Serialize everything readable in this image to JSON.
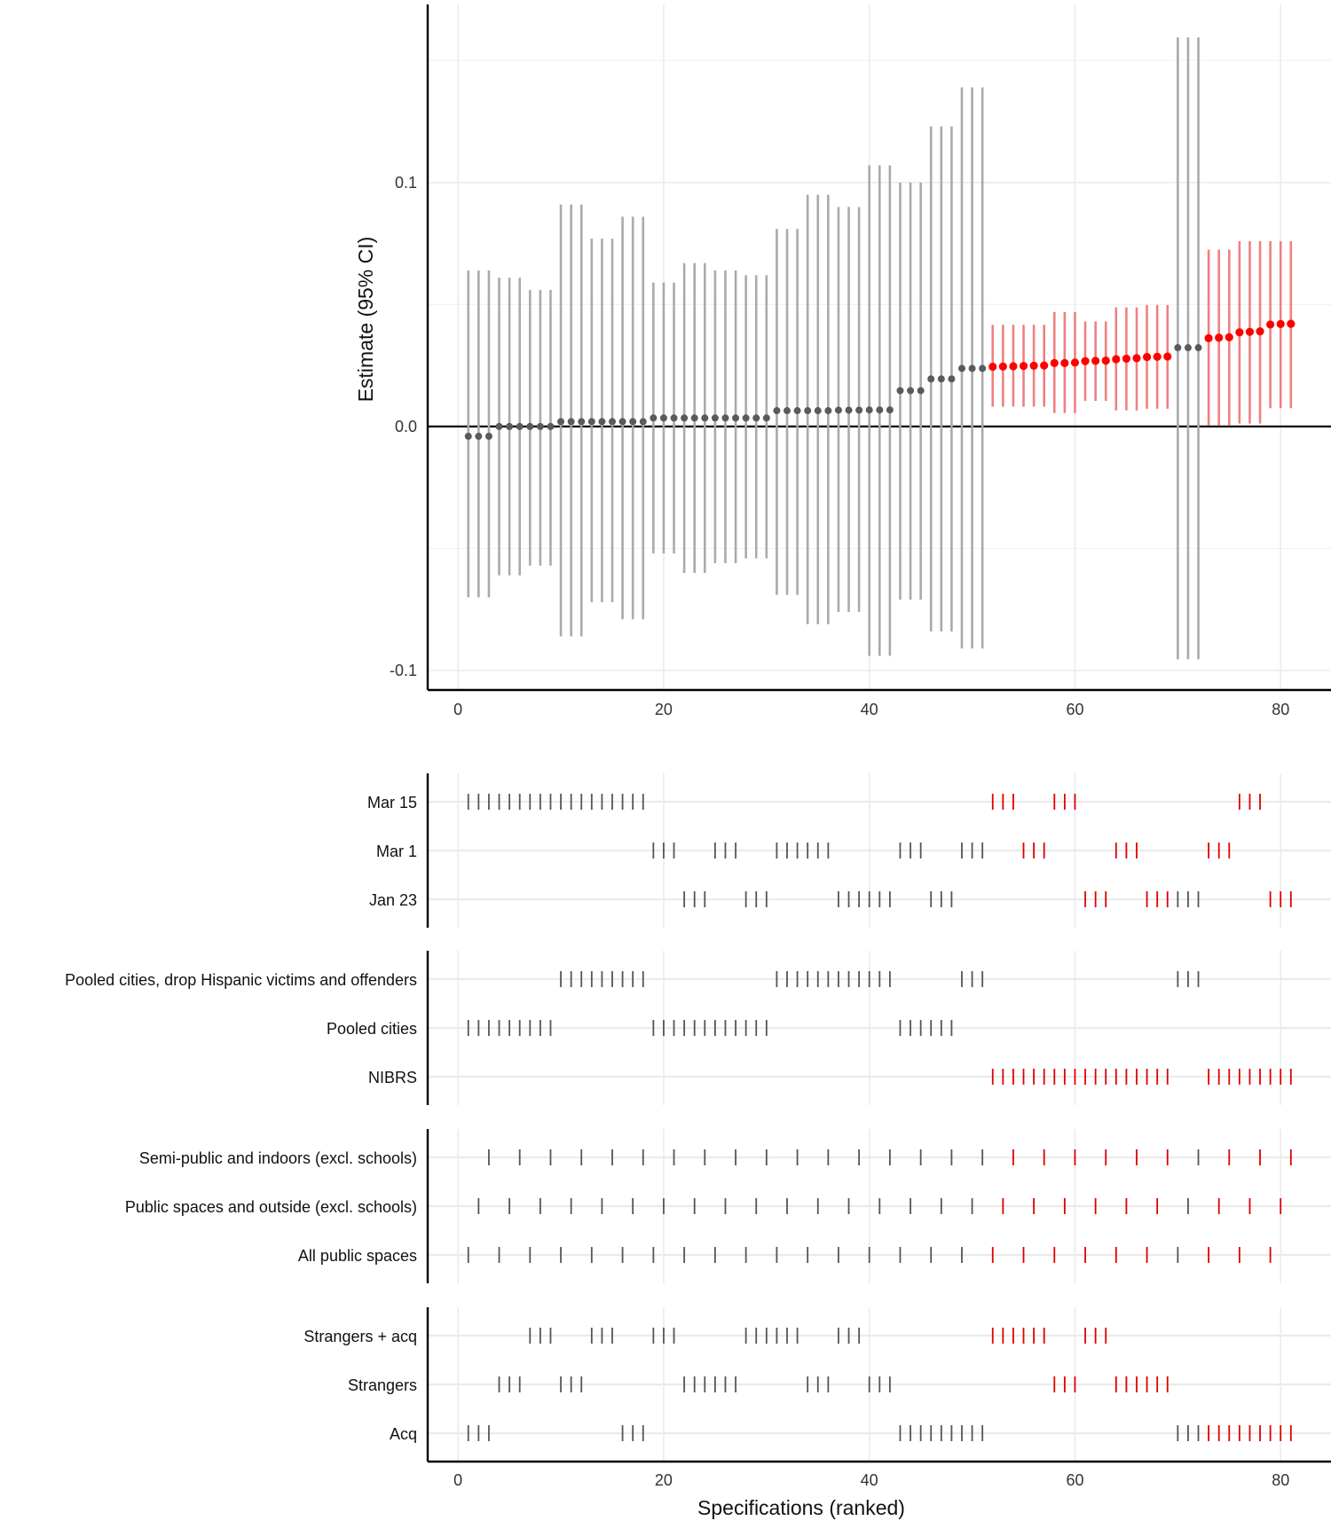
{
  "colors": {
    "significant": "#ff0000",
    "significant_ci": "#f08080",
    "other_point": "#5a5a5a",
    "other_ci": "#aaaaaa",
    "grid": "#ebebeb",
    "axis": "#000000"
  },
  "chart_data": [
    {
      "type": "scatter",
      "subtype": "point-with-ci",
      "title": "",
      "xlabel": "",
      "ylabel": "Estimate (95% CI)",
      "xlim": [
        -2.95,
        84.9
      ],
      "ylim": [
        -0.108,
        0.173
      ],
      "xticks": [
        0,
        20,
        40,
        60,
        80
      ],
      "yticks": [
        -0.1,
        0.0,
        0.1
      ],
      "ytick_labels": [
        "-0.1",
        "0.0",
        "0.1"
      ],
      "grid": true,
      "reference_line": 0,
      "x": [
        1,
        2,
        3,
        4,
        5,
        6,
        7,
        8,
        9,
        10,
        11,
        12,
        13,
        14,
        15,
        16,
        17,
        18,
        19,
        20,
        21,
        22,
        23,
        24,
        25,
        26,
        27,
        28,
        29,
        30,
        31,
        32,
        33,
        34,
        35,
        36,
        37,
        38,
        39,
        40,
        41,
        42,
        43,
        44,
        45,
        46,
        47,
        48,
        49,
        50,
        51,
        52,
        53,
        54,
        55,
        56,
        57,
        58,
        59,
        60,
        61,
        62,
        63,
        64,
        65,
        66,
        67,
        68,
        69,
        70,
        71,
        72,
        73,
        74,
        75,
        76,
        77,
        78,
        79,
        80,
        81
      ],
      "estimate": [
        -0.004,
        -0.004,
        -0.004,
        0.0,
        0.0,
        0.0,
        0.0,
        0.0,
        0.0,
        0.002,
        0.002,
        0.002,
        0.002,
        0.002,
        0.002,
        0.002,
        0.002,
        0.002,
        0.0035,
        0.0035,
        0.0035,
        0.0035,
        0.0035,
        0.0035,
        0.0035,
        0.0035,
        0.0035,
        0.0035,
        0.0035,
        0.0035,
        0.0065,
        0.0065,
        0.0065,
        0.0065,
        0.0065,
        0.0065,
        0.0067,
        0.0067,
        0.0067,
        0.0068,
        0.0068,
        0.0068,
        0.0147,
        0.0147,
        0.0147,
        0.0195,
        0.0195,
        0.0195,
        0.0238,
        0.0238,
        0.0238,
        0.0245,
        0.0246,
        0.0247,
        0.0248,
        0.0249,
        0.025,
        0.026,
        0.026,
        0.0262,
        0.0268,
        0.0269,
        0.027,
        0.0276,
        0.0278,
        0.028,
        0.0285,
        0.0286,
        0.0287,
        0.0323,
        0.0323,
        0.0323,
        0.0362,
        0.0364,
        0.0366,
        0.0386,
        0.0388,
        0.039,
        0.0418,
        0.042,
        0.0421
      ],
      "upper": [
        0.064,
        0.064,
        0.064,
        0.061,
        0.061,
        0.061,
        0.056,
        0.056,
        0.056,
        0.091,
        0.091,
        0.091,
        0.077,
        0.077,
        0.077,
        0.086,
        0.086,
        0.086,
        0.059,
        0.059,
        0.059,
        0.067,
        0.067,
        0.067,
        0.064,
        0.064,
        0.064,
        0.062,
        0.062,
        0.062,
        0.081,
        0.081,
        0.081,
        0.095,
        0.095,
        0.095,
        0.09,
        0.09,
        0.09,
        0.107,
        0.107,
        0.107,
        0.1,
        0.1,
        0.1,
        0.123,
        0.123,
        0.123,
        0.139,
        0.139,
        0.139,
        0.0417,
        0.0417,
        0.0417,
        0.0417,
        0.0417,
        0.0417,
        0.0469,
        0.0469,
        0.0469,
        0.0431,
        0.0431,
        0.0431,
        0.0488,
        0.0488,
        0.0488,
        0.0498,
        0.0498,
        0.0498,
        0.1595,
        0.1595,
        0.1595,
        0.0725,
        0.0725,
        0.0725,
        0.076,
        0.076,
        0.076,
        0.076,
        0.076,
        0.076
      ],
      "lower": [
        -0.07,
        -0.07,
        -0.07,
        -0.061,
        -0.061,
        -0.061,
        -0.057,
        -0.057,
        -0.057,
        -0.086,
        -0.086,
        -0.086,
        -0.072,
        -0.072,
        -0.072,
        -0.079,
        -0.079,
        -0.079,
        -0.052,
        -0.052,
        -0.052,
        -0.06,
        -0.06,
        -0.06,
        -0.056,
        -0.056,
        -0.056,
        -0.054,
        -0.054,
        -0.054,
        -0.069,
        -0.069,
        -0.069,
        -0.081,
        -0.081,
        -0.081,
        -0.076,
        -0.076,
        -0.076,
        -0.094,
        -0.094,
        -0.094,
        -0.071,
        -0.071,
        -0.071,
        -0.084,
        -0.084,
        -0.084,
        -0.091,
        -0.091,
        -0.091,
        0.0081,
        0.0081,
        0.0081,
        0.0081,
        0.0081,
        0.0081,
        0.0055,
        0.0055,
        0.0055,
        0.0105,
        0.0105,
        0.0105,
        0.0066,
        0.0066,
        0.0066,
        0.0073,
        0.0073,
        0.0073,
        -0.0954,
        -0.0954,
        -0.0954,
        0.0004,
        0.0004,
        0.0004,
        0.0012,
        0.0012,
        0.0012,
        0.0075,
        0.0075,
        0.0075
      ],
      "highlighted": [
        52,
        53,
        54,
        55,
        56,
        57,
        58,
        59,
        60,
        61,
        62,
        63,
        64,
        65,
        66,
        67,
        68,
        69,
        73,
        74,
        75,
        76,
        77,
        78,
        79,
        80,
        81
      ]
    },
    {
      "type": "table",
      "subtype": "specification-indicators",
      "xlabel": "Specifications (ranked)",
      "xlim": [
        -2.95,
        84.9
      ],
      "xticks": [
        0,
        20,
        40,
        60,
        80
      ],
      "groups": [
        {
          "rows": [
            {
              "label": "Mar 15",
              "specs": [
                1,
                2,
                3,
                4,
                5,
                6,
                7,
                8,
                9,
                10,
                11,
                12,
                13,
                14,
                15,
                16,
                17,
                18,
                52,
                53,
                54,
                58,
                59,
                60,
                76,
                77,
                78
              ]
            },
            {
              "label": "Mar 1",
              "specs": [
                19,
                20,
                21,
                25,
                26,
                27,
                31,
                32,
                33,
                34,
                35,
                36,
                43,
                44,
                45,
                49,
                50,
                51,
                55,
                56,
                57,
                64,
                65,
                66,
                73,
                74,
                75
              ]
            },
            {
              "label": "Jan 23",
              "specs": [
                22,
                23,
                24,
                28,
                29,
                30,
                37,
                38,
                39,
                40,
                41,
                42,
                46,
                47,
                48,
                61,
                62,
                63,
                67,
                68,
                69,
                70,
                71,
                72,
                79,
                80,
                81
              ]
            }
          ]
        },
        {
          "rows": [
            {
              "label": "Pooled cities, drop Hispanic victims and offenders",
              "specs": [
                10,
                11,
                12,
                13,
                14,
                15,
                16,
                17,
                18,
                31,
                32,
                33,
                34,
                35,
                36,
                37,
                38,
                39,
                40,
                41,
                42,
                49,
                50,
                51,
                70,
                71,
                72
              ]
            },
            {
              "label": "Pooled cities",
              "specs": [
                1,
                2,
                3,
                4,
                5,
                6,
                7,
                8,
                9,
                19,
                20,
                21,
                22,
                23,
                24,
                25,
                26,
                27,
                28,
                29,
                30,
                43,
                44,
                45,
                46,
                47,
                48
              ]
            },
            {
              "label": "NIBRS",
              "specs": [
                52,
                53,
                54,
                55,
                56,
                57,
                58,
                59,
                60,
                61,
                62,
                63,
                64,
                65,
                66,
                67,
                68,
                69,
                73,
                74,
                75,
                76,
                77,
                78,
                79,
                80,
                81
              ]
            }
          ]
        },
        {
          "rows": [
            {
              "label": "Semi-public and indoors (excl. schools)",
              "specs": [
                3,
                6,
                9,
                12,
                15,
                18,
                21,
                24,
                27,
                30,
                33,
                36,
                39,
                42,
                45,
                48,
                51,
                54,
                57,
                60,
                63,
                66,
                69,
                72,
                75,
                78,
                81
              ]
            },
            {
              "label": "Public spaces and outside (excl. schools)",
              "specs": [
                2,
                5,
                8,
                11,
                14,
                17,
                20,
                23,
                26,
                29,
                32,
                35,
                38,
                41,
                44,
                47,
                50,
                53,
                56,
                59,
                62,
                65,
                68,
                71,
                74,
                77,
                80
              ]
            },
            {
              "label": "All public spaces",
              "specs": [
                1,
                4,
                7,
                10,
                13,
                16,
                19,
                22,
                25,
                28,
                31,
                34,
                37,
                40,
                43,
                46,
                49,
                52,
                55,
                58,
                61,
                64,
                67,
                70,
                73,
                76,
                79
              ]
            }
          ]
        },
        {
          "rows": [
            {
              "label": "Strangers + acq",
              "specs": [
                7,
                8,
                9,
                13,
                14,
                15,
                19,
                20,
                21,
                28,
                29,
                30,
                31,
                32,
                33,
                37,
                38,
                39,
                52,
                53,
                54,
                55,
                56,
                57,
                61,
                62,
                63
              ]
            },
            {
              "label": "Strangers",
              "specs": [
                4,
                5,
                6,
                10,
                11,
                12,
                22,
                23,
                24,
                25,
                26,
                27,
                34,
                35,
                36,
                40,
                41,
                42,
                58,
                59,
                60,
                64,
                65,
                66,
                67,
                68,
                69
              ]
            },
            {
              "label": "Acq",
              "specs": [
                1,
                2,
                3,
                16,
                17,
                18,
                43,
                44,
                45,
                46,
                47,
                48,
                49,
                50,
                51,
                70,
                71,
                72,
                73,
                74,
                75,
                76,
                77,
                78,
                79,
                80,
                81
              ]
            }
          ]
        }
      ]
    }
  ]
}
